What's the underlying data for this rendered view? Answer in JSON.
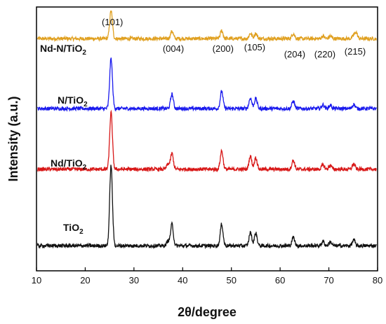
{
  "chart_data": {
    "type": "line",
    "xlabel": "2θ/degree",
    "ylabel": "Intensity (a.u.)",
    "xlim": [
      10,
      80
    ],
    "xticks": [
      "10",
      "20",
      "30",
      "40",
      "50",
      "60",
      "70",
      "80"
    ],
    "grid": false,
    "peak_annotations": [
      {
        "label": "(101)",
        "x": 25.3
      },
      {
        "label": "(004)",
        "x": 37.8
      },
      {
        "label": "(200)",
        "x": 48.0
      },
      {
        "label": "(105)",
        "x": 54.5
      },
      {
        "label": "(204)",
        "x": 62.7
      },
      {
        "label": "(220)",
        "x": 68.9
      },
      {
        "label": "(215)",
        "x": 75.1
      }
    ],
    "series": [
      {
        "name": "Nd-N/TiO2",
        "label_main": "Nd-N/TiO",
        "label_sub": "2",
        "color": "#e0a020",
        "baseline": 0.88,
        "peaks": [
          [
            25.3,
            0.105
          ],
          [
            37.8,
            0.028
          ],
          [
            48.0,
            0.03
          ],
          [
            53.9,
            0.02
          ],
          [
            55.0,
            0.02
          ],
          [
            62.7,
            0.02
          ],
          [
            68.8,
            0.01
          ],
          [
            70.3,
            0.01
          ],
          [
            75.1,
            0.01
          ],
          [
            75.6,
            0.022
          ]
        ]
      },
      {
        "name": "N/TiO2",
        "label_main": "N/TiO",
        "label_sub": "2",
        "color": "#1a1aee",
        "baseline": 0.615,
        "peaks": [
          [
            25.3,
            0.19
          ],
          [
            37.8,
            0.055
          ],
          [
            48.0,
            0.065
          ],
          [
            53.9,
            0.04
          ],
          [
            55.0,
            0.038
          ],
          [
            62.7,
            0.028
          ],
          [
            68.8,
            0.014
          ],
          [
            70.3,
            0.013
          ],
          [
            75.1,
            0.016
          ]
        ]
      },
      {
        "name": "Nd/TiO2",
        "label_main": "Nd/TiO",
        "label_sub": "2",
        "color": "#d81818",
        "baseline": 0.385,
        "peaks": [
          [
            25.3,
            0.215
          ],
          [
            37.0,
            0.02
          ],
          [
            37.8,
            0.06
          ],
          [
            48.0,
            0.07
          ],
          [
            53.9,
            0.05
          ],
          [
            55.0,
            0.044
          ],
          [
            62.7,
            0.034
          ],
          [
            68.8,
            0.016
          ],
          [
            70.3,
            0.015
          ],
          [
            75.1,
            0.02
          ]
        ]
      },
      {
        "name": "TiO2",
        "label_main": "TiO",
        "label_sub": "2",
        "color": "#111111",
        "baseline": 0.095,
        "peaks": [
          [
            25.3,
            0.305
          ],
          [
            37.0,
            0.018
          ],
          [
            37.8,
            0.082
          ],
          [
            48.0,
            0.082
          ],
          [
            53.9,
            0.05
          ],
          [
            55.0,
            0.048
          ],
          [
            62.7,
            0.032
          ],
          [
            68.8,
            0.016
          ],
          [
            70.3,
            0.015
          ],
          [
            75.1,
            0.022
          ]
        ]
      }
    ]
  }
}
